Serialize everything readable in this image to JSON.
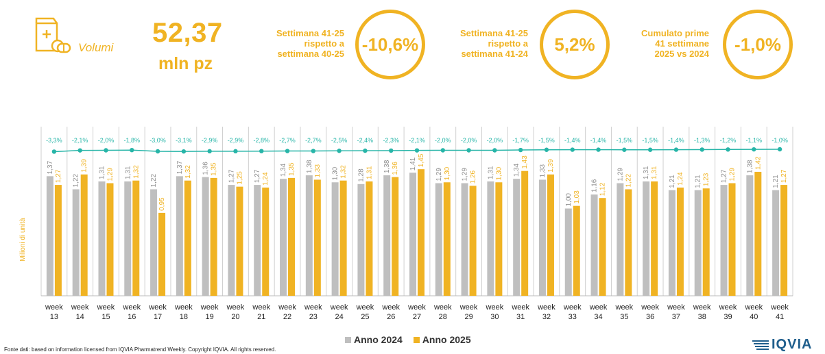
{
  "header": {
    "label": "Volumi",
    "value": "52,37",
    "unit": "mln pz"
  },
  "kpis": [
    {
      "text": [
        "Settimana 41-25",
        "rispetto a",
        "settimana 40-25"
      ],
      "value": "-10,6%"
    },
    {
      "text": [
        "Settimana 41-25",
        "rispetto a",
        "settimana 41-24"
      ],
      "value": "5,2%"
    },
    {
      "text": [
        "Cumulato prime",
        "41 settimane",
        "2025 vs 2024"
      ],
      "value": "-1,0%"
    }
  ],
  "colors": {
    "accent": "#f0b323",
    "series2024": "#bfbfbf",
    "series2025": "#f0b323",
    "line": "#27b5a8"
  },
  "chart_data": {
    "type": "bar",
    "categories": [
      "week 13",
      "week 14",
      "week 15",
      "week 16",
      "week 17",
      "week 18",
      "week 19",
      "week 20",
      "week 21",
      "week 22",
      "week 23",
      "week 24",
      "week 25",
      "week 26",
      "week 27",
      "week 28",
      "week 29",
      "week 30",
      "week 31",
      "week 32",
      "week 33",
      "week 34",
      "week 35",
      "week 36",
      "week 37",
      "week 38",
      "week 39",
      "week 40",
      "week 41"
    ],
    "ylabel": "Milioni di unità",
    "ylim": [
      0,
      1.6
    ],
    "series": [
      {
        "name": "Anno 2024",
        "color": "#bfbfbf",
        "values": [
          1.37,
          1.22,
          1.31,
          1.31,
          1.22,
          1.37,
          1.36,
          1.27,
          1.27,
          1.34,
          1.38,
          1.3,
          1.28,
          1.38,
          1.41,
          1.29,
          1.29,
          1.31,
          1.34,
          1.33,
          1.0,
          1.16,
          1.29,
          1.31,
          1.21,
          1.21,
          1.27,
          1.38,
          1.21
        ],
        "labels": [
          "1,37",
          "1,22",
          "1,31",
          "1,31",
          "1,22",
          "1,37",
          "1,36",
          "1,27",
          "1,27",
          "1,34",
          "1,38",
          "1,30",
          "1,28",
          "1,38",
          "1,41",
          "1,29",
          "1,29",
          "1,31",
          "1,34",
          "1,33",
          "1,00",
          "1,16",
          "1,29",
          "1,31",
          "1,21",
          "1,21",
          "1,27",
          "1,38",
          "1,21"
        ]
      },
      {
        "name": "Anno 2025",
        "color": "#f0b323",
        "values": [
          1.27,
          1.39,
          1.29,
          1.32,
          0.95,
          1.32,
          1.35,
          1.25,
          1.24,
          1.35,
          1.33,
          1.32,
          1.31,
          1.36,
          1.45,
          1.3,
          1.26,
          1.3,
          1.43,
          1.39,
          1.03,
          1.12,
          1.22,
          1.31,
          1.24,
          1.23,
          1.29,
          1.42,
          1.27
        ],
        "labels": [
          "1,27",
          "1,39",
          "1,29",
          "1,32",
          "0,95",
          "1,32",
          "1,35",
          "1,25",
          "1,24",
          "1,35",
          "1,33",
          "1,32",
          "1,31",
          "1,36",
          "1,45",
          "1,30",
          "1,26",
          "1,30",
          "1,43",
          "1,39",
          "1,03",
          "1,12",
          "1,22",
          "1,31",
          "1,24",
          "1,23",
          "1,29",
          "1,42",
          "1,27"
        ]
      }
    ],
    "cumulative_pct": {
      "values": [
        -3.3,
        -2.1,
        -2.0,
        -1.8,
        -3.0,
        -3.1,
        -2.9,
        -2.9,
        -2.8,
        -2.7,
        -2.7,
        -2.5,
        -2.4,
        -2.3,
        -2.1,
        -2.0,
        -2.0,
        -2.0,
        -1.7,
        -1.5,
        -1.4,
        -1.4,
        -1.5,
        -1.5,
        -1.4,
        -1.3,
        -1.2,
        -1.1,
        -1.0
      ],
      "labels": [
        "-3,3%",
        "-2,1%",
        "-2,0%",
        "-1,8%",
        "-3,0%",
        "-3,1%",
        "-2,9%",
        "-2,9%",
        "-2,8%",
        "-2,7%",
        "-2,7%",
        "-2,5%",
        "-2,4%",
        "-2,3%",
        "-2,1%",
        "-2,0%",
        "-2,0%",
        "-2,0%",
        "-1,7%",
        "-1,5%",
        "-1,4%",
        "-1,4%",
        "-1,5%",
        "-1,5%",
        "-1,4%",
        "-1,3%",
        "-1,2%",
        "-1,1%",
        "-1,0%"
      ]
    }
  },
  "legend": {
    "items": [
      "Anno 2024",
      "Anno 2025"
    ]
  },
  "footer": "Fonte dati: based on information licensed from IQVIA Pharmatrend Weekly. Copyright IQVIA. All rights reserved.",
  "logo": {
    "text": "IQVIA",
    "icon": "iqvia-logo-icon"
  }
}
